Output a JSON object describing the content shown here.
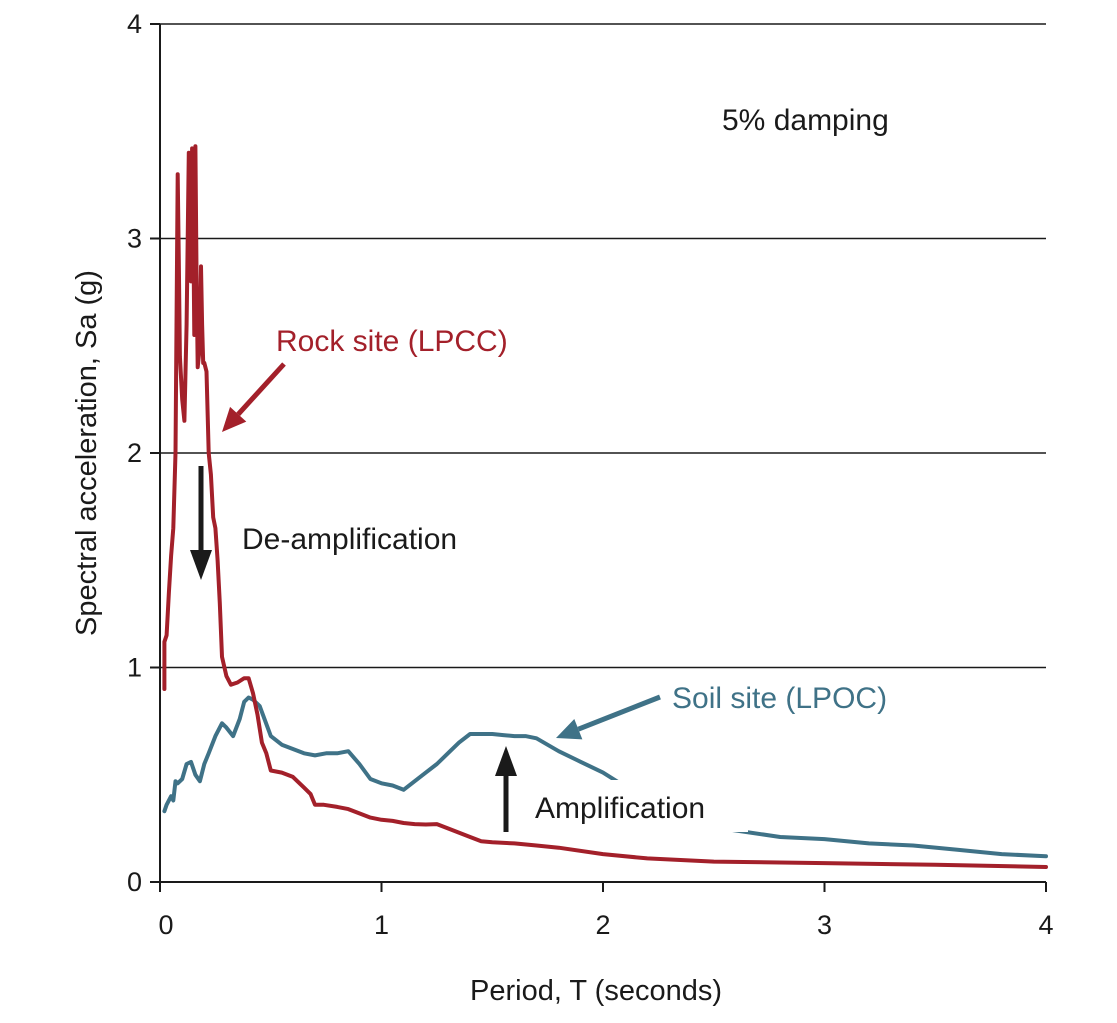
{
  "chart_data": {
    "type": "line",
    "xlabel": "Period, T (seconds)",
    "ylabel": "Spectral acceleration, Sa (g)",
    "xlim": [
      0,
      4
    ],
    "ylim": [
      0,
      4
    ],
    "x_ticks": [
      "0",
      "1",
      "2",
      "3",
      "4"
    ],
    "y_ticks": [
      "0",
      "1",
      "2",
      "3",
      "4"
    ],
    "grid": "horizontal",
    "annotations": {
      "damping": "5% damping",
      "deamplification": "De-amplification",
      "amplification": "Amplification"
    },
    "series": [
      {
        "name": "Rock site (LPCC)",
        "color": "#a3202a",
        "x": [
          0.02,
          0.02,
          0.03,
          0.04,
          0.05,
          0.06,
          0.07,
          0.08,
          0.085,
          0.09,
          0.1,
          0.11,
          0.12,
          0.13,
          0.14,
          0.145,
          0.15,
          0.155,
          0.16,
          0.165,
          0.17,
          0.18,
          0.185,
          0.19,
          0.195,
          0.2,
          0.21,
          0.22,
          0.23,
          0.24,
          0.25,
          0.26,
          0.27,
          0.28,
          0.3,
          0.32,
          0.35,
          0.38,
          0.4,
          0.42,
          0.44,
          0.46,
          0.48,
          0.5,
          0.55,
          0.6,
          0.65,
          0.68,
          0.7,
          0.74,
          0.8,
          0.85,
          0.9,
          0.95,
          1.0,
          1.05,
          1.1,
          1.15,
          1.2,
          1.25,
          1.3,
          1.4,
          1.45,
          1.5,
          1.6,
          1.7,
          1.8,
          2.0,
          2.2,
          2.5,
          3.0,
          3.5,
          4.0
        ],
        "y": [
          0.9,
          1.12,
          1.15,
          1.35,
          1.52,
          1.65,
          2.0,
          3.3,
          2.9,
          2.45,
          2.25,
          2.15,
          2.6,
          3.4,
          2.8,
          3.42,
          3.1,
          2.55,
          3.43,
          2.85,
          2.4,
          2.5,
          2.87,
          2.6,
          2.42,
          2.42,
          2.38,
          2.0,
          1.9,
          1.7,
          1.65,
          1.5,
          1.3,
          1.05,
          0.96,
          0.92,
          0.93,
          0.95,
          0.95,
          0.88,
          0.78,
          0.65,
          0.6,
          0.52,
          0.51,
          0.49,
          0.44,
          0.41,
          0.36,
          0.36,
          0.35,
          0.34,
          0.32,
          0.3,
          0.29,
          0.285,
          0.275,
          0.27,
          0.268,
          0.27,
          0.25,
          0.21,
          0.19,
          0.185,
          0.18,
          0.17,
          0.16,
          0.13,
          0.11,
          0.095,
          0.088,
          0.08,
          0.07
        ]
      },
      {
        "name": "Soil site (LPOC)",
        "color": "#3f7287",
        "x": [
          0.02,
          0.03,
          0.05,
          0.06,
          0.07,
          0.08,
          0.1,
          0.12,
          0.14,
          0.16,
          0.18,
          0.2,
          0.22,
          0.25,
          0.28,
          0.3,
          0.33,
          0.36,
          0.38,
          0.4,
          0.42,
          0.45,
          0.5,
          0.55,
          0.6,
          0.65,
          0.7,
          0.75,
          0.8,
          0.85,
          0.9,
          0.95,
          1.0,
          1.05,
          1.1,
          1.15,
          1.2,
          1.25,
          1.3,
          1.35,
          1.4,
          1.45,
          1.5,
          1.55,
          1.6,
          1.65,
          1.7,
          1.8,
          1.9,
          2.0,
          2.2,
          2.4,
          2.6,
          2.8,
          3.0,
          3.2,
          3.4,
          3.6,
          3.8,
          4.0
        ],
        "y": [
          0.33,
          0.36,
          0.4,
          0.38,
          0.47,
          0.46,
          0.48,
          0.55,
          0.56,
          0.5,
          0.47,
          0.55,
          0.6,
          0.68,
          0.74,
          0.72,
          0.68,
          0.76,
          0.84,
          0.86,
          0.85,
          0.82,
          0.68,
          0.64,
          0.62,
          0.6,
          0.59,
          0.6,
          0.6,
          0.61,
          0.55,
          0.48,
          0.46,
          0.45,
          0.43,
          0.47,
          0.51,
          0.55,
          0.6,
          0.65,
          0.69,
          0.69,
          0.69,
          0.685,
          0.68,
          0.68,
          0.67,
          0.61,
          0.56,
          0.51,
          0.38,
          0.27,
          0.24,
          0.21,
          0.2,
          0.18,
          0.17,
          0.15,
          0.13,
          0.12
        ]
      }
    ]
  }
}
